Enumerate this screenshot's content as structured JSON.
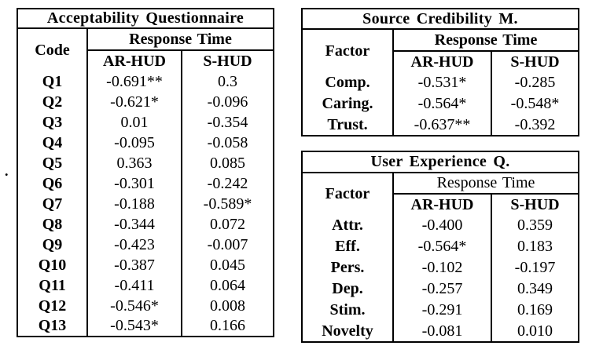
{
  "page": {
    "background": "#ffffff",
    "text_color": "#000000",
    "border_color": "#000000",
    "stray_mark": "."
  },
  "tables": [
    {
      "id": "acceptability-questionnaire",
      "title": "Acceptability Questionnaire",
      "row_header": "Code",
      "group_header": "Response Time",
      "col_headers": [
        "AR-HUD",
        "S-HUD"
      ],
      "rows": [
        {
          "label": "Q1",
          "ar_hud": "-0.691**",
          "s_hud": "0.3"
        },
        {
          "label": "Q2",
          "ar_hud": "-0.621*",
          "s_hud": "-0.096"
        },
        {
          "label": "Q3",
          "ar_hud": "0.01",
          "s_hud": "-0.354"
        },
        {
          "label": "Q4",
          "ar_hud": "-0.095",
          "s_hud": "-0.058"
        },
        {
          "label": "Q5",
          "ar_hud": "0.363",
          "s_hud": "0.085"
        },
        {
          "label": "Q6",
          "ar_hud": "-0.301",
          "s_hud": "-0.242"
        },
        {
          "label": "Q7",
          "ar_hud": "-0.188",
          "s_hud": "-0.589*"
        },
        {
          "label": "Q8",
          "ar_hud": "-0.344",
          "s_hud": "0.072"
        },
        {
          "label": "Q9",
          "ar_hud": "-0.423",
          "s_hud": "-0.007"
        },
        {
          "label": "Q10",
          "ar_hud": "-0.387",
          "s_hud": "0.045"
        },
        {
          "label": "Q11",
          "ar_hud": "-0.411",
          "s_hud": "0.064"
        },
        {
          "label": "Q12",
          "ar_hud": "-0.546*",
          "s_hud": "0.008"
        },
        {
          "label": "Q13",
          "ar_hud": "-0.543*",
          "s_hud": "0.166"
        }
      ]
    },
    {
      "id": "source-credibility",
      "title": "Source Credibility M.",
      "row_header": "Factor",
      "group_header": "Response Time",
      "col_headers": [
        "AR-HUD",
        "S-HUD"
      ],
      "rows": [
        {
          "label": "Comp.",
          "ar_hud": "-0.531*",
          "s_hud": "-0.285"
        },
        {
          "label": "Caring.",
          "ar_hud": "-0.564*",
          "s_hud": "-0.548*"
        },
        {
          "label": "Trust.",
          "ar_hud": "-0.637**",
          "s_hud": "-0.392"
        }
      ]
    },
    {
      "id": "user-experience",
      "title": "User Experience Q.",
      "row_header": "Factor",
      "group_header": "Response Time",
      "col_headers": [
        "AR-HUD",
        "S-HUD"
      ],
      "rows": [
        {
          "label": "Attr.",
          "ar_hud": "-0.400",
          "s_hud": "0.359"
        },
        {
          "label": "Eff.",
          "ar_hud": "-0.564*",
          "s_hud": "0.183"
        },
        {
          "label": "Pers.",
          "ar_hud": "-0.102",
          "s_hud": "-0.197"
        },
        {
          "label": "Dep.",
          "ar_hud": "-0.257",
          "s_hud": "0.349"
        },
        {
          "label": "Stim.",
          "ar_hud": "-0.291",
          "s_hud": "0.169"
        },
        {
          "label": "Novelty",
          "ar_hud": "-0.081",
          "s_hud": "0.010"
        }
      ]
    }
  ]
}
